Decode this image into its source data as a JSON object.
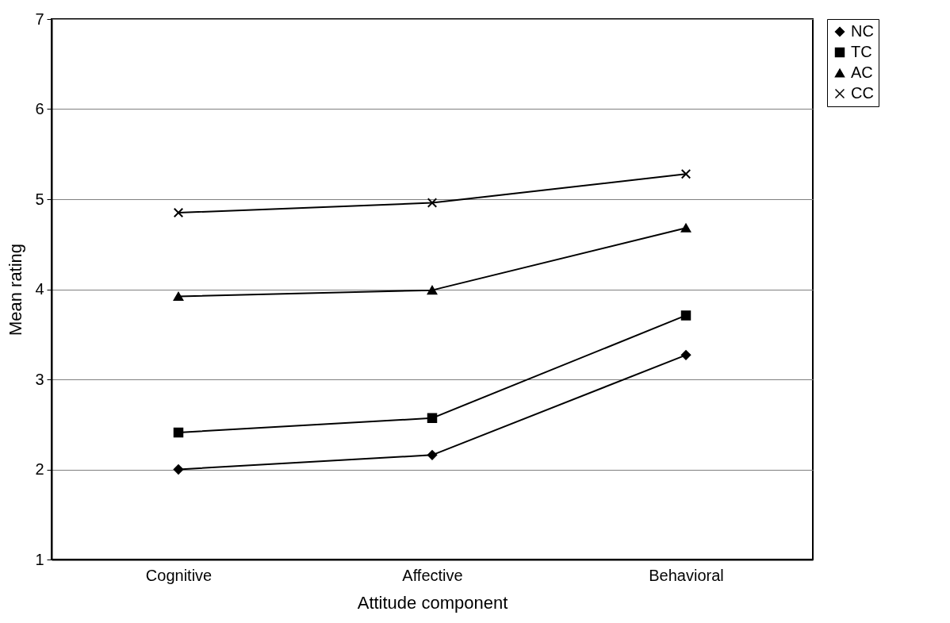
{
  "chart_data": {
    "type": "line",
    "xlabel": "Attitude component",
    "ylabel": "Mean rating",
    "categories": [
      "Cognitive",
      "Affective",
      "Behavioral"
    ],
    "series": [
      {
        "name": "NC",
        "color": "#000000",
        "marker": "diamond",
        "values": [
          2.0,
          2.16,
          3.27
        ]
      },
      {
        "name": "TC",
        "color": "#000000",
        "marker": "square",
        "values": [
          2.41,
          2.57,
          3.71
        ]
      },
      {
        "name": "AC",
        "color": "#000000",
        "marker": "triangle",
        "values": [
          3.92,
          3.99,
          4.68
        ]
      },
      {
        "name": "CC",
        "color": "#000000",
        "marker": "cross",
        "values": [
          4.85,
          4.96,
          5.28
        ]
      }
    ],
    "ylim": [
      1,
      7
    ],
    "yticks": [
      1,
      2,
      3,
      4,
      5,
      6,
      7
    ],
    "grid": "y",
    "legend": "right",
    "line_style": "solid"
  }
}
